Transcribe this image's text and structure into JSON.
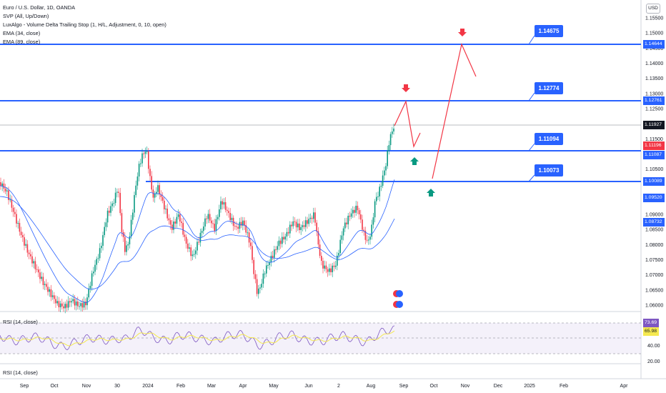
{
  "legend": {
    "symbol": "Euro / U.S. Dollar, 1D, OANDA",
    "line1": "SVP (All, Up/Down)",
    "line2": "LuxAlgo - Volume Delta Trailing Stop (1, H/L, Adjustment, 0, 10, open)",
    "line3": "EMA (34, close)",
    "line4": "EMA (89, close)"
  },
  "currency_button": "USD",
  "rsi_pane_label": "RSI (14, close)",
  "rsi_pane2_label": "RSI (14, close)",
  "price_axis_ticks": [
    "1.15500",
    "1.15000",
    "1.14500",
    "1.14000",
    "1.13500",
    "1.13000",
    "1.12500",
    "1.12000",
    "1.11500",
    "1.11000",
    "1.10500",
    "1.10000",
    "1.09500",
    "1.09000",
    "1.08500",
    "1.08000",
    "1.07500",
    "1.07000",
    "1.06500",
    "1.06000"
  ],
  "price_tags": [
    {
      "text": "1.14644",
      "color": "#2962ff"
    },
    {
      "text": "1.12761",
      "color": "#2962ff"
    },
    {
      "text": "1.11927",
      "color": "#131722"
    },
    {
      "text": "1.11196",
      "color": "#f23645"
    },
    {
      "text": "1.11087",
      "color": "#2962ff"
    },
    {
      "text": "1.10089",
      "color": "#2962ff"
    },
    {
      "text": "1.09520",
      "color": "#2962ff"
    },
    {
      "text": "1.08732",
      "color": "#2962ff"
    }
  ],
  "level_labels": [
    "1.14675",
    "1.12774",
    "1.11094",
    "1.10073"
  ],
  "rsi_axis": {
    "ticks": [
      "40.00",
      "20.00"
    ],
    "value1": "73.69",
    "value2": "65.98"
  },
  "time_axis": [
    "Sep",
    "Oct",
    "Nov",
    "30",
    "2024",
    "Feb",
    "Mar",
    "Apr",
    "May",
    "Jun",
    "2",
    "Aug",
    "Sep",
    "Oct",
    "Nov",
    "Dec",
    "2025",
    "Feb",
    "Apr"
  ],
  "colors": {
    "level_line": "#2962ff",
    "projection": "#f23645",
    "arrow_down": "#f23645",
    "arrow_up": "#089981",
    "candle_up": "#089981",
    "candle_down": "#f23645",
    "ema34": "#2962ff",
    "rsi_line": "#7e57c2",
    "rsi_ma": "#f5e94f"
  }
}
